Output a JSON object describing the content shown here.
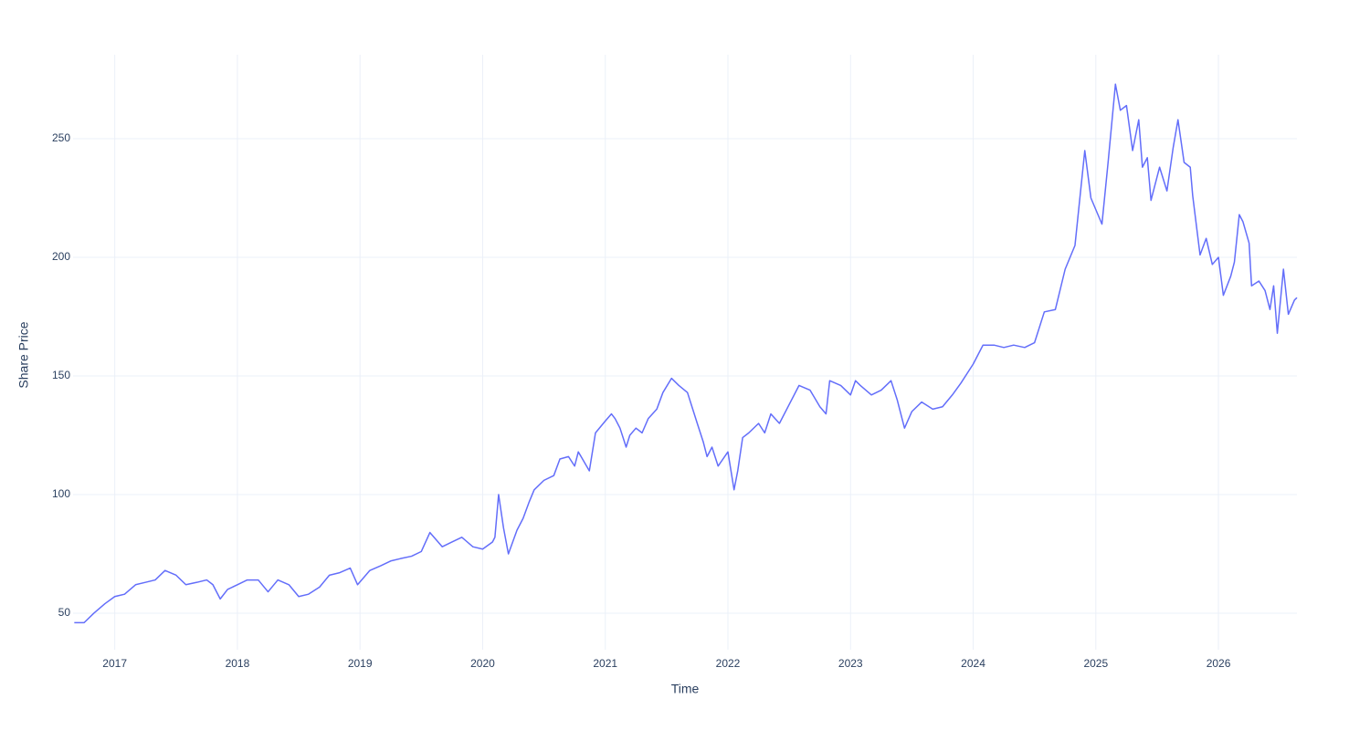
{
  "chart_data": {
    "type": "line",
    "xlabel": "Time",
    "ylabel": "Share Price",
    "xlim": [
      2016.66,
      2026.64
    ],
    "xticks": [
      2017,
      2018,
      2019,
      2020,
      2021,
      2022,
      2023,
      2024,
      2025,
      2026
    ],
    "ylim": [
      34.6,
      285.4
    ],
    "yticks": [
      50,
      100,
      150,
      200,
      250
    ],
    "grid": true,
    "x": [
      2016.67,
      2016.75,
      2016.83,
      2016.92,
      2017.0,
      2017.08,
      2017.17,
      2017.25,
      2017.33,
      2017.41,
      2017.5,
      2017.58,
      2017.67,
      2017.75,
      2017.8,
      2017.86,
      2017.92,
      2018.0,
      2018.08,
      2018.17,
      2018.25,
      2018.33,
      2018.42,
      2018.5,
      2018.58,
      2018.67,
      2018.75,
      2018.83,
      2018.92,
      2018.98,
      2019.08,
      2019.17,
      2019.25,
      2019.33,
      2019.42,
      2019.5,
      2019.57,
      2019.67,
      2019.75,
      2019.83,
      2019.92,
      2020.0,
      2020.08,
      2020.1,
      2020.13,
      2020.17,
      2020.21,
      2020.28,
      2020.33,
      2020.38,
      2020.42,
      2020.5,
      2020.58,
      2020.63,
      2020.7,
      2020.75,
      2020.78,
      2020.87,
      2020.92,
      2021.0,
      2021.05,
      2021.08,
      2021.12,
      2021.17,
      2021.2,
      2021.25,
      2021.3,
      2021.35,
      2021.42,
      2021.47,
      2021.54,
      2021.6,
      2021.67,
      2021.75,
      2021.8,
      2021.83,
      2021.87,
      2021.92,
      2022.0,
      2022.05,
      2022.08,
      2022.12,
      2022.17,
      2022.25,
      2022.3,
      2022.35,
      2022.42,
      2022.5,
      2022.58,
      2022.67,
      2022.75,
      2022.8,
      2022.83,
      2022.92,
      2023.0,
      2023.04,
      2023.08,
      2023.17,
      2023.25,
      2023.33,
      2023.38,
      2023.41,
      2023.44,
      2023.5,
      2023.58,
      2023.67,
      2023.75,
      2023.83,
      2023.9,
      2024.0,
      2024.08,
      2024.17,
      2024.25,
      2024.33,
      2024.42,
      2024.5,
      2024.58,
      2024.67,
      2024.75,
      2024.83,
      2024.91,
      2024.96,
      2025.05,
      2025.1,
      2025.16,
      2025.2,
      2025.25,
      2025.3,
      2025.35,
      2025.38,
      2025.42,
      2025.45,
      2025.52,
      2025.58,
      2025.63,
      2025.67,
      2025.72,
      2025.77,
      2025.79,
      2025.85,
      2025.9,
      2025.95,
      2026.0,
      2026.04,
      2026.1,
      2026.13,
      2026.17,
      2026.2,
      2026.25,
      2026.27,
      2026.33,
      2026.38,
      2026.42,
      2026.45,
      2026.48,
      2026.53,
      2026.57,
      2026.62,
      2026.64
    ],
    "series": [
      {
        "name": "Share Price",
        "color": "#636efa",
        "values": [
          46,
          46,
          50,
          54,
          57,
          58,
          62,
          63,
          64,
          68,
          66,
          62,
          63,
          64,
          62,
          56,
          60,
          62,
          64,
          64,
          59,
          64,
          62,
          57,
          58,
          61,
          66,
          67,
          69,
          62,
          68,
          70,
          72,
          73,
          74,
          76,
          84,
          78,
          80,
          82,
          78,
          77,
          80,
          82,
          100,
          86,
          75,
          85,
          90,
          97,
          102,
          106,
          108,
          115,
          116,
          112,
          118,
          110,
          126,
          131,
          134,
          132,
          128,
          120,
          125,
          128,
          126,
          132,
          136,
          143,
          149,
          146,
          143,
          130,
          122,
          116,
          120,
          112,
          118,
          102,
          110,
          124,
          126,
          130,
          126,
          134,
          130,
          138,
          146,
          144,
          137,
          134,
          148,
          146,
          142,
          148,
          146,
          142,
          144,
          148,
          140,
          134,
          128,
          135,
          139,
          136,
          137,
          142,
          147,
          155,
          163,
          163,
          162,
          163,
          162,
          164,
          177,
          178,
          195,
          205,
          245,
          225,
          214,
          240,
          273,
          262,
          264,
          245,
          258,
          238,
          242,
          224,
          238,
          228,
          246,
          258,
          240,
          238,
          226,
          201,
          208,
          197,
          200,
          184,
          192,
          198,
          218,
          215,
          206,
          188,
          190,
          186,
          178,
          188,
          168,
          195,
          176,
          182,
          183
        ]
      }
    ]
  }
}
